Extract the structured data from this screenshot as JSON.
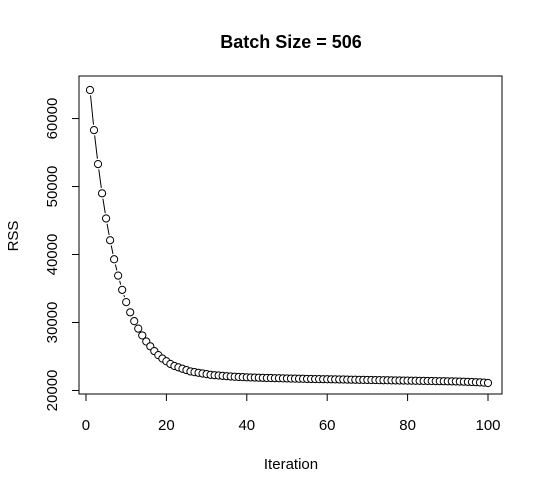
{
  "chart_data": {
    "type": "scatter",
    "title": "Batch Size = 506",
    "xlabel": "Iteration",
    "ylabel": "RSS",
    "xlim": [
      1,
      100
    ],
    "ylim": [
      21100,
      64200
    ],
    "xticks": [
      0,
      20,
      40,
      60,
      80,
      100
    ],
    "yticks": [
      20000,
      30000,
      40000,
      50000,
      60000
    ],
    "xtick_labels": [
      "0",
      "20",
      "40",
      "60",
      "80",
      "100"
    ],
    "ytick_labels": [
      "20000",
      "30000",
      "40000",
      "50000",
      "60000"
    ],
    "grid": false,
    "legend": false,
    "marker": "open-circle",
    "connected": "dashed-line",
    "series": [
      {
        "x_start": 1,
        "x_step": 1,
        "y": [
          64200,
          58300,
          53300,
          49000,
          45300,
          42100,
          39300,
          36900,
          34800,
          33000,
          31500,
          30200,
          29100,
          28100,
          27200,
          26500,
          25800,
          25200,
          24700,
          24300,
          23900,
          23600,
          23400,
          23200,
          23000,
          22800,
          22700,
          22600,
          22500,
          22400,
          22300,
          22250,
          22200,
          22150,
          22100,
          22060,
          22020,
          21990,
          21960,
          21940,
          21920,
          21900,
          21880,
          21860,
          21840,
          21830,
          21810,
          21800,
          21780,
          21770,
          21750,
          21740,
          21730,
          21720,
          21700,
          21690,
          21680,
          21670,
          21660,
          21650,
          21640,
          21630,
          21620,
          21610,
          21600,
          21590,
          21580,
          21570,
          21560,
          21550,
          21540,
          21530,
          21520,
          21510,
          21500,
          21490,
          21480,
          21470,
          21460,
          21450,
          21440,
          21430,
          21420,
          21410,
          21400,
          21390,
          21380,
          21370,
          21360,
          21350,
          21340,
          21330,
          21310,
          21290,
          21270,
          21250,
          21220,
          21190,
          21150,
          21100
        ]
      }
    ]
  }
}
